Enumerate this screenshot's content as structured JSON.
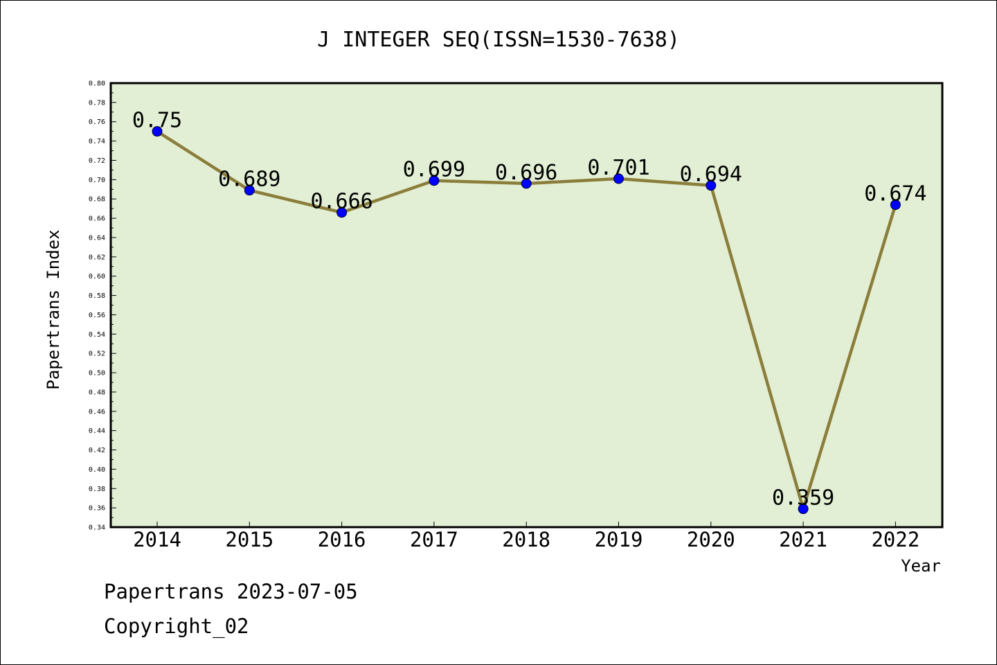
{
  "chart_data": {
    "type": "line",
    "title": "J INTEGER SEQ(ISSN=1530-7638)",
    "xlabel": "Year",
    "ylabel": "Papertrans Index",
    "categories": [
      "2014",
      "2015",
      "2016",
      "2017",
      "2018",
      "2019",
      "2020",
      "2021",
      "2022"
    ],
    "series": [
      {
        "values": [
          0.75,
          0.689,
          0.666,
          0.699,
          0.696,
          0.701,
          0.694,
          0.359,
          0.674
        ],
        "labels": [
          "0.75",
          "0.689",
          "0.666",
          "0.699",
          "0.696",
          "0.701",
          "0.694",
          "0.359",
          "0.674"
        ]
      }
    ],
    "ylim": [
      0.34,
      0.8
    ],
    "ytick_step": 0.02,
    "grid": false,
    "colors": {
      "plot_background": "#e2efd5",
      "line": "#8b7d3a",
      "marker": "#0000ff"
    }
  },
  "footer": {
    "line1": "Papertrans 2023-07-05",
    "line2": "Copyright_02"
  }
}
